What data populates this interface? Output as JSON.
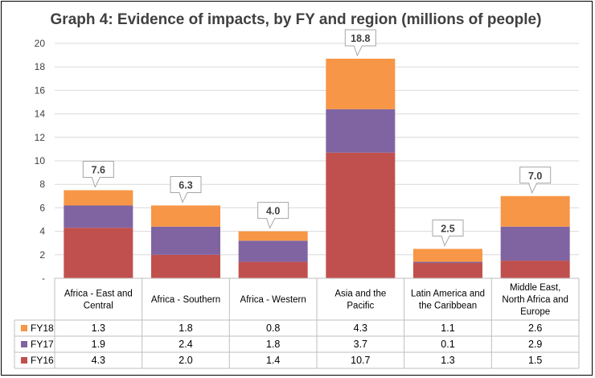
{
  "chart_data": {
    "type": "bar",
    "stacked": true,
    "title": "Graph 4: Evidence of impacts, by FY and region (millions of people)",
    "categories": [
      [
        "Africa - East and",
        "Central"
      ],
      [
        "Africa - Southern"
      ],
      [
        "Africa - Western"
      ],
      [
        "Asia and the",
        "Pacific"
      ],
      [
        "Latin America and",
        "the Caribbean"
      ],
      [
        "Middle East,",
        "North Africa and",
        "Europe"
      ]
    ],
    "series": [
      {
        "name": "FY16",
        "color": "#c0504d",
        "values": [
          4.3,
          2.0,
          1.4,
          10.7,
          1.3,
          1.5
        ],
        "labels": [
          "4.3",
          "2.0",
          "1.4",
          "10.7",
          "1.3",
          "1.5"
        ]
      },
      {
        "name": "FY17",
        "color": "#8064a2",
        "values": [
          1.9,
          2.4,
          1.8,
          3.7,
          0.1,
          2.9
        ],
        "labels": [
          "1.9",
          "2.4",
          "1.8",
          "3.7",
          "0.1",
          "2.9"
        ]
      },
      {
        "name": "FY18",
        "color": "#f79646",
        "values": [
          1.3,
          1.8,
          0.8,
          4.3,
          1.1,
          2.6
        ],
        "labels": [
          "1.3",
          "1.8",
          "0.8",
          "4.3",
          "1.1",
          "2.6"
        ]
      }
    ],
    "table_row_order": [
      "FY18",
      "FY17",
      "FY16"
    ],
    "totals": [
      "7.6",
      "6.3",
      "4.0",
      "18.8",
      "2.5",
      "7.0"
    ],
    "ylim": [
      0,
      20
    ],
    "yticks": [
      {
        "value": 0,
        "label": "-"
      },
      {
        "value": 2,
        "label": "2"
      },
      {
        "value": 4,
        "label": "4"
      },
      {
        "value": 6,
        "label": "6"
      },
      {
        "value": 8,
        "label": "8"
      },
      {
        "value": 10,
        "label": "10"
      },
      {
        "value": 12,
        "label": "12"
      },
      {
        "value": 14,
        "label": "14"
      },
      {
        "value": 16,
        "label": "16"
      },
      {
        "value": 18,
        "label": "18"
      },
      {
        "value": 20,
        "label": "20"
      }
    ],
    "grid": true,
    "legend": "data-table"
  }
}
